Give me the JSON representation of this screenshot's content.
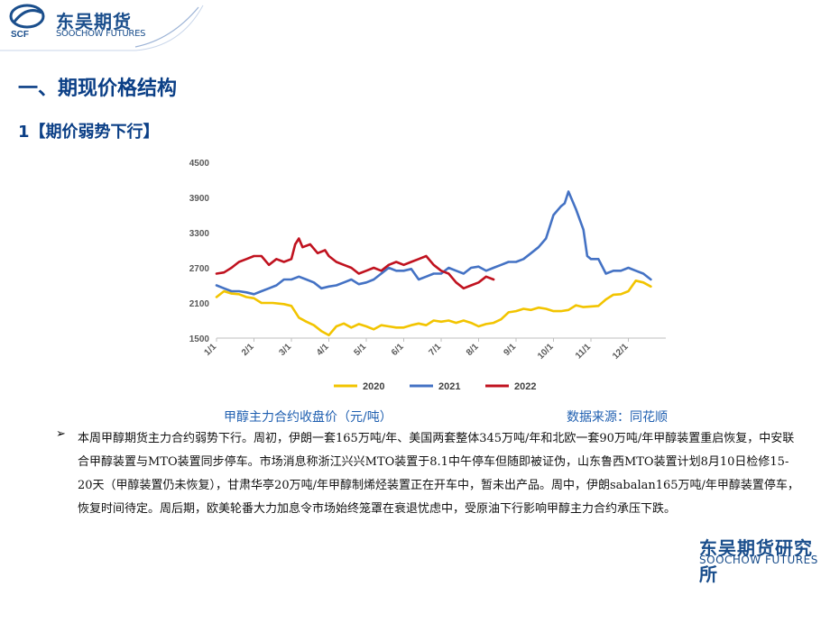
{
  "header": {
    "logo_cn": "东吴期货",
    "logo_en": "SOOCHOW FUTURES",
    "logo_mark": "SCF"
  },
  "section_title": "一、期现价格结构",
  "sub_title": "1【期价弱势下行】",
  "chart_data": {
    "type": "line",
    "y_ticks": [
      "4500",
      "3900",
      "3300",
      "2700",
      "2100",
      "1500"
    ],
    "ylim": [
      1500,
      4500
    ],
    "x_ticks": [
      "1/1",
      "2/1",
      "3/1",
      "4/1",
      "5/1",
      "6/1",
      "7/1",
      "8/1",
      "9/1",
      "10/1",
      "11/1",
      "12/1"
    ],
    "x_months": [
      1,
      2,
      3,
      4,
      5,
      6,
      7,
      8,
      9,
      10,
      11,
      12
    ],
    "legend_position": "bottom",
    "colors": {
      "2020": "#f2c400",
      "2021": "#4472c4",
      "2022": "#c0121f"
    },
    "series": [
      {
        "name": "2020",
        "x": [
          1.0,
          1.2,
          1.4,
          1.6,
          1.8,
          2.0,
          2.2,
          2.5,
          2.8,
          3.0,
          3.2,
          3.4,
          3.6,
          3.8,
          4.0,
          4.2,
          4.4,
          4.6,
          4.8,
          5.0,
          5.2,
          5.4,
          5.6,
          5.8,
          6.0,
          6.2,
          6.4,
          6.6,
          6.8,
          7.0,
          7.2,
          7.4,
          7.6,
          7.8,
          8.0,
          8.2,
          8.4,
          8.6,
          8.8,
          9.0,
          9.2,
          9.4,
          9.6,
          9.8,
          10.0,
          10.2,
          10.4,
          10.6,
          10.8,
          11.0,
          11.2,
          11.4,
          11.6,
          11.8,
          12.0,
          12.2,
          12.4,
          12.6
        ],
        "values": [
          2200,
          2300,
          2260,
          2250,
          2200,
          2180,
          2100,
          2100,
          2080,
          2050,
          1850,
          1780,
          1720,
          1620,
          1550,
          1700,
          1750,
          1680,
          1740,
          1700,
          1650,
          1720,
          1700,
          1680,
          1680,
          1720,
          1750,
          1720,
          1800,
          1780,
          1800,
          1760,
          1800,
          1760,
          1700,
          1740,
          1760,
          1820,
          1940,
          1960,
          2000,
          1980,
          2020,
          2000,
          1960,
          1960,
          1980,
          2060,
          2030,
          2040,
          2050,
          2160,
          2240,
          2250,
          2300,
          2480,
          2450,
          2380
        ]
      },
      {
        "name": "2021",
        "x": [
          1.0,
          1.2,
          1.4,
          1.6,
          1.8,
          2.0,
          2.2,
          2.4,
          2.6,
          2.8,
          3.0,
          3.2,
          3.4,
          3.6,
          3.8,
          4.0,
          4.2,
          4.4,
          4.6,
          4.8,
          5.0,
          5.2,
          5.4,
          5.6,
          5.8,
          6.0,
          6.2,
          6.4,
          6.6,
          6.8,
          7.0,
          7.2,
          7.4,
          7.6,
          7.8,
          8.0,
          8.2,
          8.4,
          8.6,
          8.8,
          9.0,
          9.2,
          9.4,
          9.6,
          9.8,
          10.0,
          10.2,
          10.3,
          10.4,
          10.6,
          10.8,
          10.9,
          11.0,
          11.2,
          11.4,
          11.6,
          11.8,
          12.0,
          12.2,
          12.4,
          12.6
        ],
        "values": [
          2400,
          2350,
          2300,
          2300,
          2280,
          2250,
          2300,
          2350,
          2400,
          2500,
          2500,
          2550,
          2500,
          2450,
          2350,
          2380,
          2400,
          2450,
          2500,
          2420,
          2450,
          2500,
          2600,
          2700,
          2650,
          2650,
          2680,
          2500,
          2550,
          2600,
          2600,
          2700,
          2650,
          2600,
          2700,
          2720,
          2650,
          2700,
          2750,
          2800,
          2800,
          2850,
          2950,
          3050,
          3200,
          3600,
          3750,
          3800,
          4000,
          3700,
          3350,
          2900,
          2850,
          2850,
          2600,
          2650,
          2650,
          2700,
          2650,
          2600,
          2500
        ]
      },
      {
        "name": "2022",
        "x": [
          1.0,
          1.2,
          1.4,
          1.6,
          1.8,
          2.0,
          2.2,
          2.4,
          2.6,
          2.8,
          3.0,
          3.1,
          3.2,
          3.3,
          3.5,
          3.7,
          3.9,
          4.0,
          4.2,
          4.4,
          4.6,
          4.8,
          5.0,
          5.2,
          5.4,
          5.6,
          5.8,
          6.0,
          6.2,
          6.4,
          6.6,
          6.8,
          7.0,
          7.2,
          7.4,
          7.6,
          7.8,
          8.0,
          8.2,
          8.4
        ],
        "values": [
          2600,
          2620,
          2700,
          2800,
          2850,
          2900,
          2900,
          2750,
          2850,
          2800,
          2850,
          3100,
          3200,
          3050,
          3100,
          2950,
          3000,
          2900,
          2800,
          2750,
          2700,
          2600,
          2650,
          2700,
          2650,
          2750,
          2800,
          2750,
          2800,
          2850,
          2900,
          2750,
          2650,
          2600,
          2450,
          2350,
          2400,
          2450,
          2550,
          2500
        ]
      }
    ]
  },
  "captions": {
    "left": "甲醇主力合约收盘价（元/吨）",
    "right": "数据来源：同花顺"
  },
  "bullet_symbol": "➢",
  "body_text": "本周甲醇期货主力合约弱势下行。周初，伊朗一套165万吨/年、美国两套整体345万吨/年和北欧一套90万吨/年甲醇装置重启恢复，中安联合甲醇装置与MTO装置同步停车。市场消息称浙江兴兴MTO装置于8.1中午停车但随即被证伪，山东鲁西MTO装置计划8月10日检修15-20天（甲醇装置仍未恢复），甘肃华亭20万吨/年甲醇制烯烃装置正在开车中，暂未出产品。周中，伊朗sabalan165万吨/年甲醇装置停车，恢复时间待定。周后期，欧美轮番大力加息令市场始终笼罩在衰退忧虑中，受原油下行影响甲醇主力合约承压下跌。",
  "footer": {
    "watermark_cn": "东吴期货研究所",
    "watermark_en": "SOOCHOW FUTURES"
  }
}
